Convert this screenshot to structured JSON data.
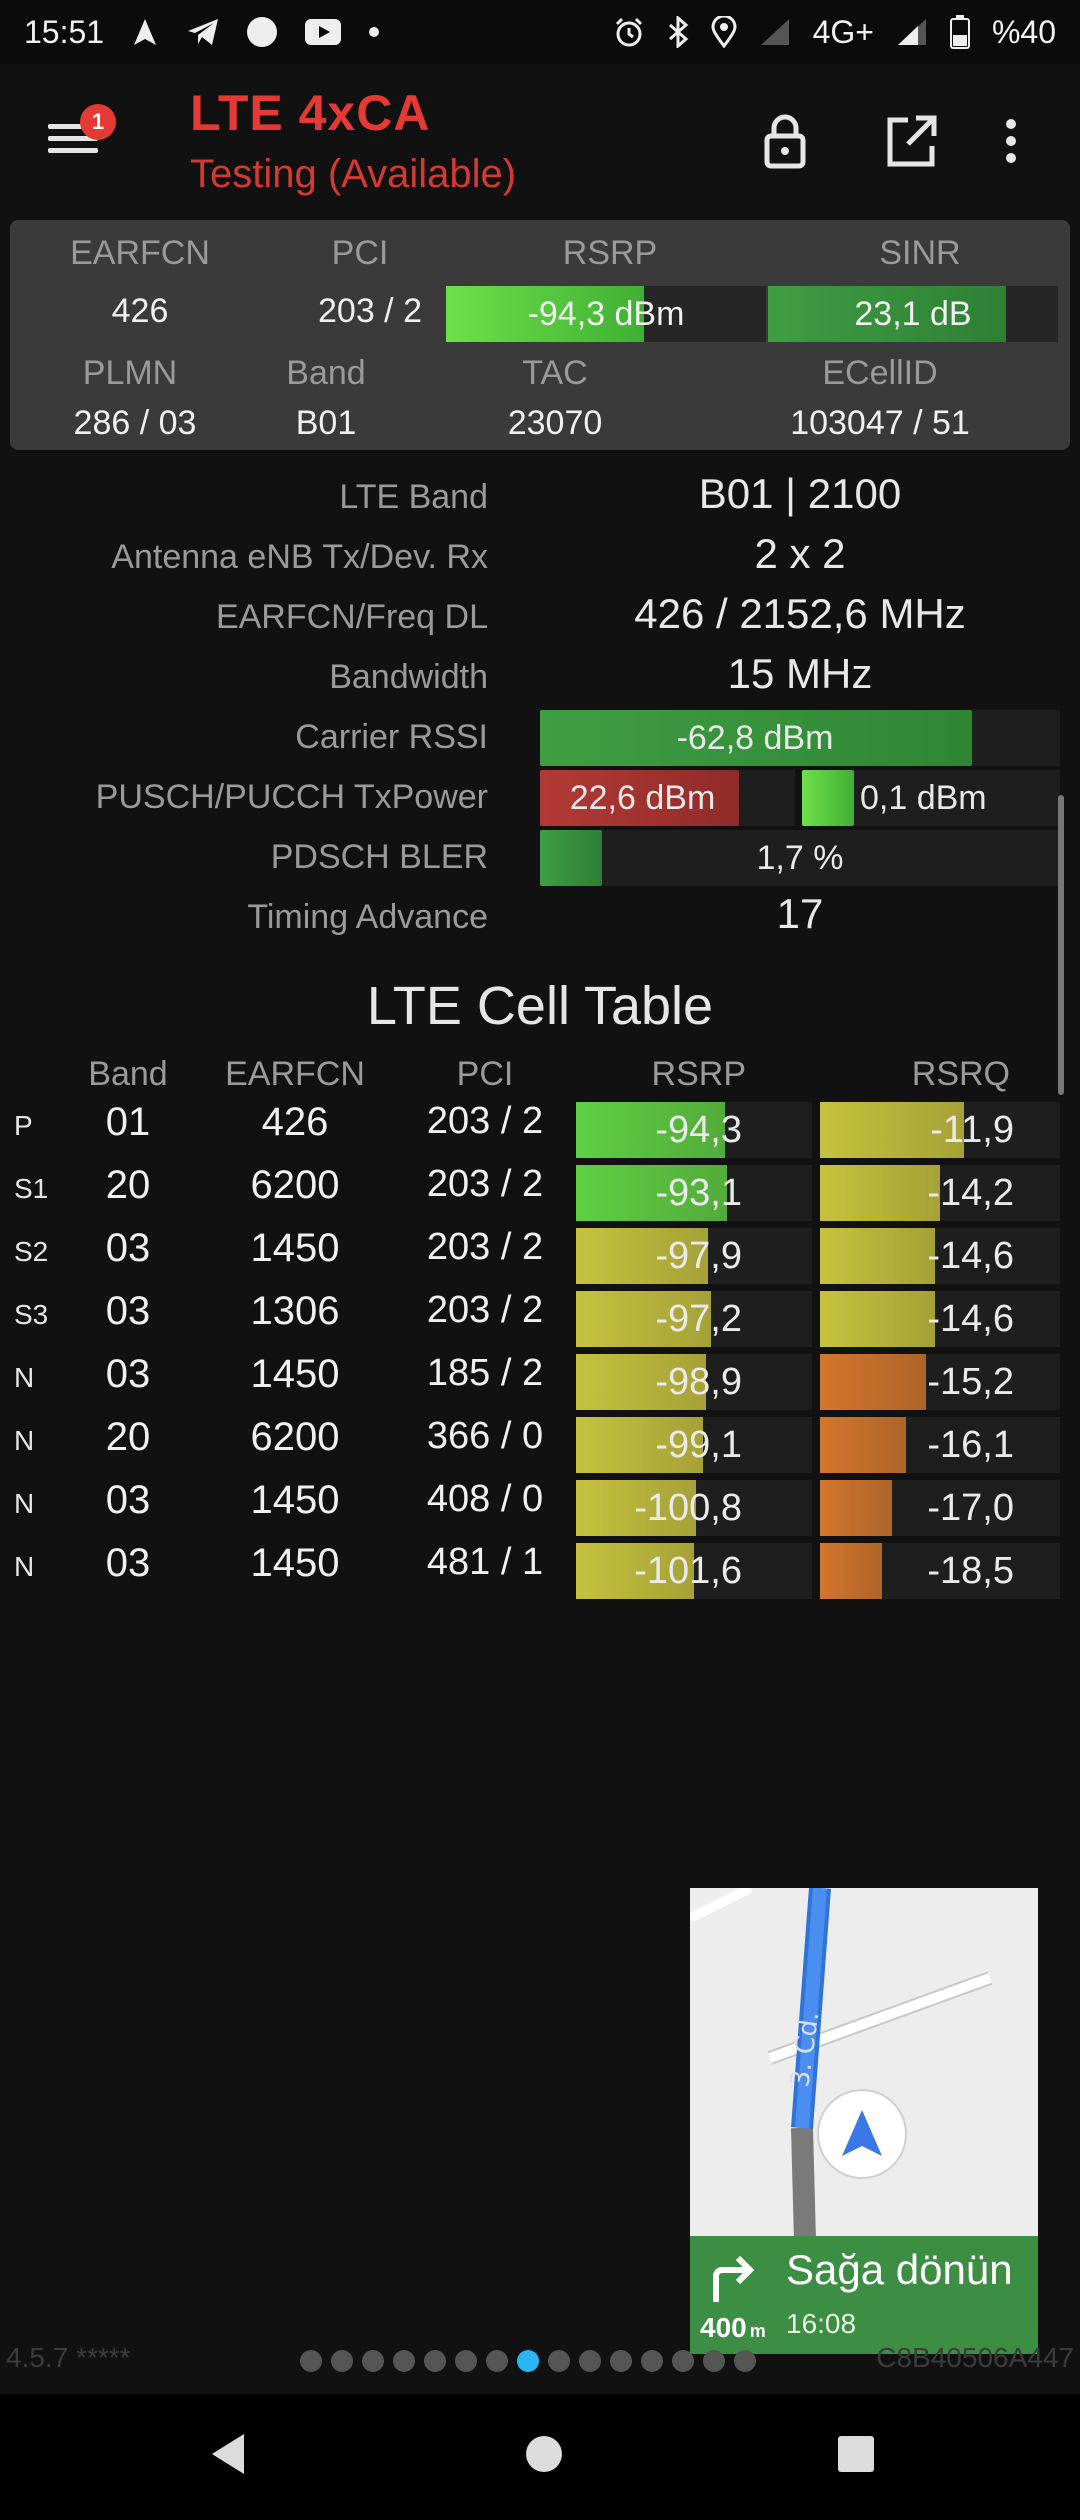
{
  "status_bar": {
    "time": "15:51",
    "network": "4G+",
    "battery": "%40",
    "icons_left": [
      "navigation-icon",
      "telegram-icon",
      "circle-icon",
      "youtube-icon",
      "dot-icon"
    ],
    "icons_right": [
      "alarm-icon",
      "bluetooth-icon",
      "location-icon",
      "signal-empty-icon",
      "signal-icon",
      "battery-icon"
    ]
  },
  "app_bar": {
    "title": "LTE 4xCA",
    "subtitle": "Testing (Available)",
    "badge_count": "1",
    "title_color": "#e53935"
  },
  "panel": {
    "headers": {
      "earfcn": "EARFCN",
      "pci": "PCI",
      "rsrp": "RSRP",
      "sinr": "SINR",
      "plmn": "PLMN",
      "band": "Band",
      "tac": "TAC",
      "ecellid": "ECellID"
    },
    "values": {
      "earfcn": "426",
      "pci": "203 / 2",
      "rsrp": "-94,3 dBm",
      "sinr": "23,1 dB",
      "plmn": "286 / 03",
      "band": "B01",
      "tac": "23070",
      "ecellid": "103047 / 51"
    },
    "rsrp_level": 0.62,
    "sinr_level": 0.82
  },
  "details": {
    "lte_band": {
      "label": "LTE Band",
      "value": "B01 | 2100"
    },
    "antenna": {
      "label": "Antenna eNB Tx/Dev. Rx",
      "value": "2 x 2"
    },
    "earfcn_freq": {
      "label": "EARFCN/Freq DL",
      "value": "426 / 2152,6 MHz"
    },
    "bandwidth": {
      "label": "Bandwidth",
      "value": "15 MHz"
    },
    "carrier_rssi": {
      "label": "Carrier RSSI",
      "value": "-62,8 dBm",
      "level": 0.83
    },
    "txpower": {
      "label": "PUSCH/PUCCH TxPower",
      "pusch": "22,6 dBm",
      "pucch": "0,1 dBm",
      "pusch_level": 0.78,
      "pucch_level": 0.2
    },
    "bler": {
      "label": "PDSCH BLER",
      "value": "1,7 %",
      "level": 0.12
    },
    "timing_advance": {
      "label": "Timing Advance",
      "value": "17"
    }
  },
  "cell_table": {
    "title": "LTE Cell Table",
    "headers": {
      "band": "Band",
      "earfcn": "EARFCN",
      "pci": "PCI",
      "rsrp": "RSRP",
      "rsrq": "RSRQ"
    },
    "rows": [
      {
        "type": "P",
        "band": "01",
        "earfcn": "426",
        "pci": "203 / 2",
        "rsrp": "-94,3",
        "rsrq": "-11,9",
        "rsrp_level": 0.63,
        "rsrq_level": 0.6,
        "rsrp_color": "#5fcf42",
        "rsrq_color": "#c7c23d"
      },
      {
        "type": "S1",
        "band": "20",
        "earfcn": "6200",
        "pci": "203 / 2",
        "rsrp": "-93,1",
        "rsrq": "-14,2",
        "rsrp_level": 0.64,
        "rsrq_level": 0.5,
        "rsrp_color": "#5fcf42",
        "rsrq_color": "#c7c23d"
      },
      {
        "type": "S2",
        "band": "03",
        "earfcn": "1450",
        "pci": "203 / 2",
        "rsrp": "-97,9",
        "rsrq": "-14,6",
        "rsrp_level": 0.56,
        "rsrq_level": 0.48,
        "rsrp_color": "#c7c23d",
        "rsrq_color": "#c7c23d"
      },
      {
        "type": "S3",
        "band": "03",
        "earfcn": "1306",
        "pci": "203 / 2",
        "rsrp": "-97,2",
        "rsrq": "-14,6",
        "rsrp_level": 0.57,
        "rsrq_level": 0.48,
        "rsrp_color": "#c7c23d",
        "rsrq_color": "#c7c23d"
      },
      {
        "type": "N",
        "band": "03",
        "earfcn": "1450",
        "pci": "185 / 2",
        "rsrp": "-98,9",
        "rsrq": "-15,2",
        "rsrp_level": 0.55,
        "rsrq_level": 0.44,
        "rsrp_color": "#c7c23d",
        "rsrq_color": "#d2762c"
      },
      {
        "type": "N",
        "band": "20",
        "earfcn": "6200",
        "pci": "366 / 0",
        "rsrp": "-99,1",
        "rsrq": "-16,1",
        "rsrp_level": 0.54,
        "rsrq_level": 0.36,
        "rsrp_color": "#c7c23d",
        "rsrq_color": "#d2762c"
      },
      {
        "type": "N",
        "band": "03",
        "earfcn": "1450",
        "pci": "408 / 0",
        "rsrp": "-100,8",
        "rsrq": "-17,0",
        "rsrp_level": 0.51,
        "rsrq_level": 0.3,
        "rsrp_color": "#c7c23d",
        "rsrq_color": "#d2762c"
      },
      {
        "type": "N",
        "band": "03",
        "earfcn": "1450",
        "pci": "481 / 1",
        "rsrp": "-101,6",
        "rsrq": "-18,5",
        "rsrp_level": 0.5,
        "rsrq_level": 0.26,
        "rsrp_color": "#c7c23d",
        "rsrq_color": "#d2762c"
      }
    ]
  },
  "map_overlay": {
    "street": "3. Cd.",
    "instruction": "Sağa dönün",
    "time": "16:08",
    "distance": "400",
    "distance_unit": "m"
  },
  "footer": {
    "version": "4.5.7 *****",
    "device_id": "C8B40506A447",
    "page_count": 15,
    "active_page": 8
  }
}
